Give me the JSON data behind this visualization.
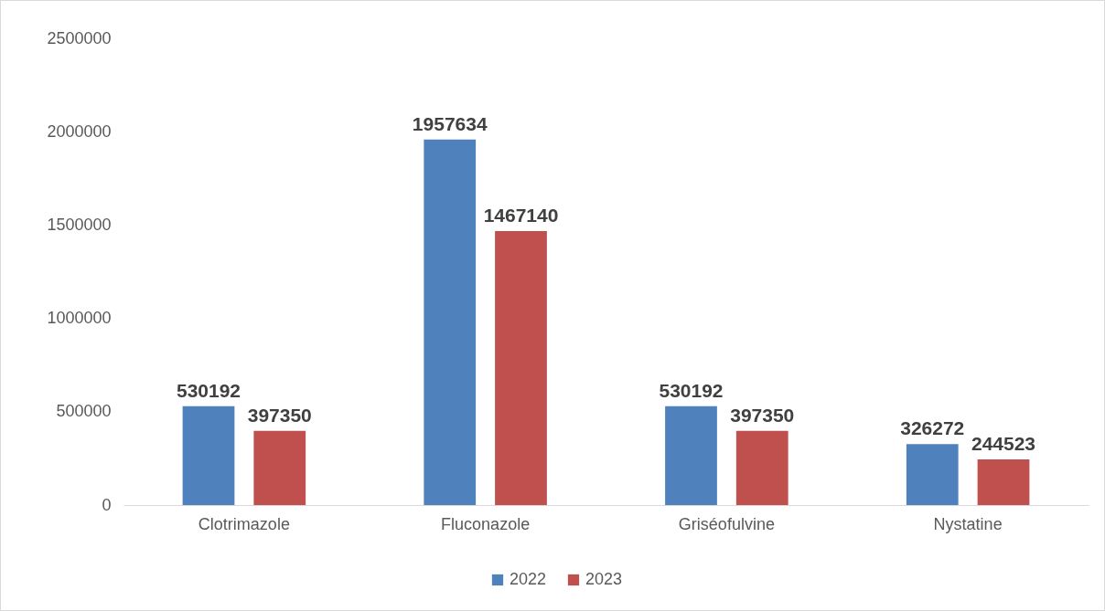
{
  "chart_data": {
    "type": "bar",
    "categories": [
      "Clotrimazole",
      "Fluconazole",
      "Griséofulvine",
      "Nystatine"
    ],
    "series": [
      {
        "name": "2022",
        "color": "#4f81bd",
        "values": [
          530192,
          1957634,
          530192,
          326272
        ]
      },
      {
        "name": "2023",
        "color": "#c0504d",
        "values": [
          397350,
          1467140,
          397350,
          244523
        ]
      }
    ],
    "ylim": [
      0,
      2500000
    ],
    "yticks": [
      0,
      500000,
      1000000,
      1500000,
      2000000,
      2500000
    ],
    "grid": false,
    "legend": "bottom",
    "data_labels": true
  }
}
